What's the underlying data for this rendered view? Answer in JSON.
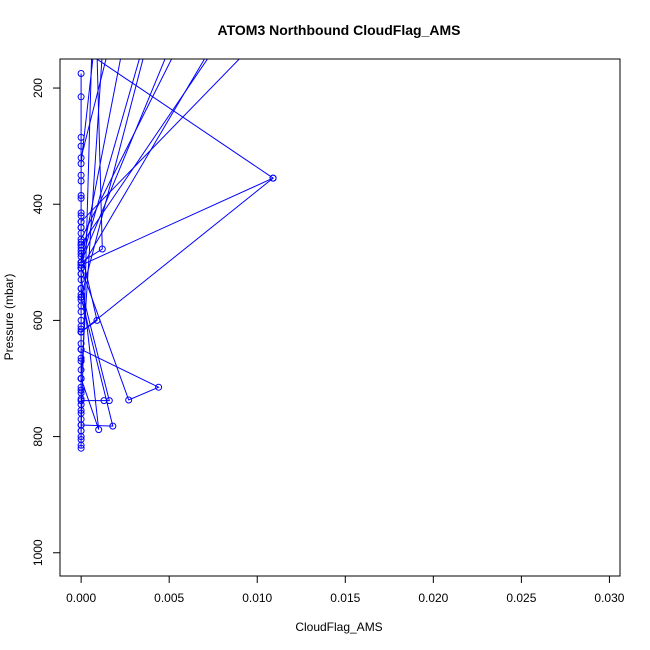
{
  "chart_data": {
    "type": "line",
    "title": "ATOM3 Northbound CloudFlag_AMS",
    "xlabel": "CloudFlag_AMS",
    "ylabel": "Pressure (mbar)",
    "xlim": [
      -0.0012,
      0.0306
    ],
    "ylim": [
      1040,
      150
    ],
    "y_reversed": true,
    "grid": false,
    "x_ticks": [
      0.0,
      0.005,
      0.01,
      0.015,
      0.02,
      0.025,
      0.03
    ],
    "x_tick_labels": [
      "0.000",
      "0.005",
      "0.010",
      "0.015",
      "0.020",
      "0.025",
      "0.030"
    ],
    "y_ticks": [
      200,
      400,
      600,
      800,
      1000
    ],
    "y_tick_labels": [
      "200",
      "400",
      "600",
      "800",
      "1000"
    ],
    "color": "#0000ff",
    "series": [
      {
        "x": [
          0.0,
          0.0,
          0.0,
          0.0,
          0.0,
          0.0,
          0.0,
          0.0,
          0.0,
          0.0,
          0.0,
          0.0,
          0.0,
          0.0,
          0.0,
          0.0,
          0.0,
          0.0,
          0.0,
          0.0,
          0.0,
          0.0,
          0.0,
          0.0,
          0.0,
          0.0,
          0.0,
          0.0,
          0.0,
          0.0,
          0.0,
          0.0,
          0.0,
          0.0,
          0.0,
          0.0,
          0.0,
          0.0,
          0.0,
          0.0,
          0.0,
          0.0,
          0.0,
          0.0,
          0.0,
          0.0,
          0.0,
          0.0,
          0.0,
          0.0,
          0.0,
          0.0,
          0.0,
          0.0,
          0.0
        ],
        "y": [
          175,
          215,
          285,
          300,
          350,
          360,
          385,
          390,
          415,
          420,
          430,
          440,
          450,
          465,
          475,
          485,
          490,
          500,
          505,
          510,
          520,
          530,
          545,
          555,
          565,
          575,
          585,
          600,
          615,
          620,
          640,
          650,
          665,
          670,
          685,
          700,
          715,
          725,
          735,
          745,
          755,
          760,
          770,
          780,
          790,
          800,
          805,
          815,
          820,
          560,
          470,
          440,
          610,
          650,
          720
        ]
      },
      {
        "x": [
          0.0004,
          0.0109,
          0.0
        ],
        "y": [
          140,
          355,
          505
        ]
      },
      {
        "x": [
          0.0,
          0.0109,
          0.0
        ],
        "y": [
          620,
          355,
          620
        ]
      },
      {
        "x": [
          0.0009,
          0.0012,
          0.0
        ],
        "y": [
          140,
          477,
          500
        ]
      },
      {
        "x": [
          0.0,
          0.0009,
          0.0
        ],
        "y": [
          480,
          600,
          620
        ]
      },
      {
        "x": [
          0.0,
          0.0044,
          0.0027,
          0.0
        ],
        "y": [
          650,
          715,
          737,
          510
        ]
      },
      {
        "x": [
          0.0,
          0.0013,
          0.0016,
          0.0
        ],
        "y": [
          738,
          738,
          738,
          545
        ]
      },
      {
        "x": [
          0.0,
          0.0018,
          0.0
        ],
        "y": [
          780,
          782,
          560
        ]
      },
      {
        "x": [
          0.0,
          0.001,
          0.0
        ],
        "y": [
          700,
          788,
          520
        ]
      },
      {
        "x": [
          0.0006,
          0.0
        ],
        "y": [
          140,
          790
        ]
      },
      {
        "x": [
          0.0,
          0.0034
        ],
        "y": [
          500,
          140
        ]
      },
      {
        "x": [
          0.0,
          0.0036
        ],
        "y": [
          560,
          140
        ]
      },
      {
        "x": [
          0.0,
          0.0072
        ],
        "y": [
          510,
          140
        ]
      },
      {
        "x": [
          0.0,
          0.0074
        ],
        "y": [
          470,
          140
        ]
      },
      {
        "x": [
          0.0,
          0.0093
        ],
        "y": [
          430,
          140
        ]
      },
      {
        "x": [
          0.0,
          0.0023
        ],
        "y": [
          500,
          140
        ]
      },
      {
        "x": [
          0.0,
          0.0049
        ],
        "y": [
          500,
          140
        ]
      },
      {
        "x": [
          0.0,
          0.0053
        ],
        "y": [
          460,
          140
        ]
      },
      {
        "x": [
          0.0,
          0.0015
        ],
        "y": [
          320,
          140
        ]
      },
      {
        "x": [
          0.0,
          0.0007
        ],
        "y": [
          330,
          140
        ]
      },
      {
        "x": [
          0.0,
          0.0012
        ],
        "y": [
          700,
          140
        ]
      }
    ]
  }
}
